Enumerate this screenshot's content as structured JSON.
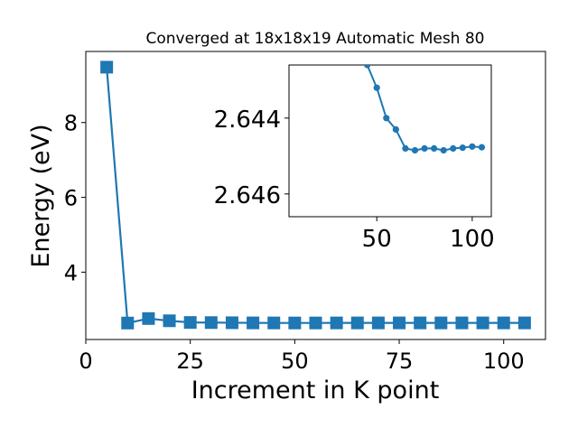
{
  "chart_data": [
    {
      "type": "line",
      "title": "Converged at 18x18x19 Automatic Mesh 80",
      "xlabel": "Increment in K point",
      "ylabel": "Energy (eV)",
      "xlim": [
        0,
        110
      ],
      "ylim": [
        2.2,
        9.9
      ],
      "x_ticks": [
        0,
        25,
        50,
        75,
        100
      ],
      "y_ticks": [
        4,
        6,
        8
      ],
      "grid": false,
      "marker": "square",
      "color": "#1f77b4",
      "series": [
        {
          "x": [
            5,
            10,
            15,
            20,
            25,
            30,
            35,
            40,
            45,
            50,
            55,
            60,
            65,
            70,
            75,
            80,
            85,
            90,
            95,
            100,
            105
          ],
          "y": [
            9.48,
            2.64,
            2.76,
            2.7,
            2.655,
            2.652,
            2.648,
            2.6437,
            2.6426,
            2.6418,
            2.6423,
            2.6432,
            2.6436,
            2.6436,
            2.6437,
            2.6437,
            2.6436,
            2.6437,
            2.6437,
            2.6437,
            2.6437
          ]
        }
      ]
    },
    {
      "type": "line",
      "inset": true,
      "xlim": [
        4,
        110
      ],
      "ylim": [
        2.6466,
        2.6426
      ],
      "inverted_y": true,
      "x_ticks": [
        50,
        100
      ],
      "y_ticks": [
        2.644,
        2.646
      ],
      "grid": false,
      "marker": "circle",
      "color": "#1f77b4",
      "series": [
        {
          "x": [
            45,
            50,
            55,
            60,
            65,
            70,
            75,
            80,
            85,
            90,
            95,
            100,
            105
          ],
          "y": [
            2.6426,
            2.6432,
            2.644,
            2.6443,
            2.6448,
            2.64485,
            2.6448,
            2.6448,
            2.64485,
            2.6448,
            2.64478,
            2.64475,
            2.64477
          ]
        }
      ]
    }
  ]
}
